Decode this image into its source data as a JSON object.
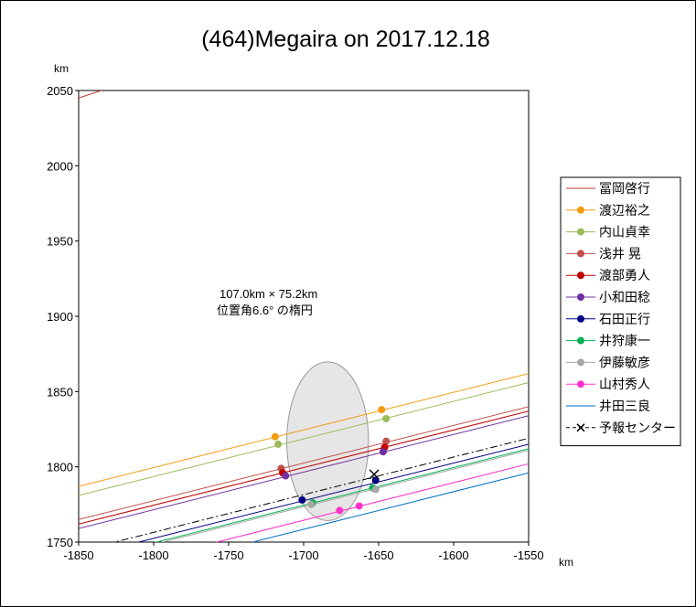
{
  "chart_data": {
    "type": "line",
    "title": "(464)Megaira on 2017.12.18",
    "xlabel": "km",
    "ylabel": "km",
    "xlim": [
      -1850,
      -1550
    ],
    "ylim": [
      1750,
      2050
    ],
    "xticks": [
      "-1850",
      "-1800",
      "-1750",
      "-1700",
      "-1650",
      "-1600",
      "-1550"
    ],
    "yticks": [
      "2050",
      "2000",
      "1950",
      "1900",
      "1850",
      "1800",
      "1750"
    ],
    "grid": false,
    "legend_position": "right",
    "annotation": [
      "107.0km × 75.2km",
      "位置角6.6° の楕円"
    ],
    "ellipse": {
      "cx": -1684,
      "cy": 1817,
      "major_km": 107.0,
      "minor_km": 75.2,
      "fill": "#e6e6e6"
    },
    "series": [
      {
        "name": "冨岡啓行",
        "color": "#c0392b",
        "line": [
          [
            -1850,
            2045
          ],
          [
            -1550,
            2145
          ]
        ],
        "points": []
      },
      {
        "name": "渡辺裕之",
        "color": "#f39c12",
        "line": [
          [
            -1850,
            1787
          ],
          [
            -1550,
            1862
          ]
        ],
        "points": [
          [
            -1719,
            1820
          ],
          [
            -1648,
            1838
          ]
        ]
      },
      {
        "name": "内山貞幸",
        "color": "#9bbb59",
        "line": [
          [
            -1850,
            1781
          ],
          [
            -1550,
            1856
          ]
        ],
        "points": [
          [
            -1717,
            1815
          ],
          [
            -1645,
            1832
          ]
        ]
      },
      {
        "name": "浅井 晃",
        "color": "#c0504d",
        "line": [
          [
            -1850,
            1765
          ],
          [
            -1550,
            1840
          ]
        ],
        "points": [
          [
            -1715,
            1799
          ],
          [
            -1645,
            1817
          ]
        ]
      },
      {
        "name": "渡部勇人",
        "color": "#c00000",
        "line": [
          [
            -1850,
            1762
          ],
          [
            -1550,
            1837
          ]
        ],
        "points": [
          [
            -1714,
            1796
          ],
          [
            -1646,
            1813
          ]
        ]
      },
      {
        "name": "小和田稔",
        "color": "#7030a0",
        "line": [
          [
            -1850,
            1759
          ],
          [
            -1550,
            1834
          ]
        ],
        "points": [
          [
            -1712,
            1794
          ],
          [
            -1647,
            1810
          ]
        ]
      },
      {
        "name": "石田正行",
        "color": "#000080",
        "line": [
          [
            -1850,
            1740
          ],
          [
            -1550,
            1815
          ]
        ],
        "points": [
          [
            -1701,
            1778
          ],
          [
            -1652,
            1791
          ]
        ]
      },
      {
        "name": "井狩康一",
        "color": "#00b050",
        "line": [
          [
            -1850,
            1737
          ],
          [
            -1550,
            1812
          ]
        ],
        "points": [
          [
            -1694,
            1776
          ],
          [
            -1654,
            1786
          ]
        ]
      },
      {
        "name": "伊藤敏彦",
        "color": "#a6a6a6",
        "line": [
          [
            -1850,
            1736
          ],
          [
            -1550,
            1811
          ]
        ],
        "points": [
          [
            -1695,
            1775
          ],
          [
            -1652,
            1785
          ]
        ]
      },
      {
        "name": "山村秀人",
        "color": "#ff33cc",
        "line": [
          [
            -1850,
            1727
          ],
          [
            -1550,
            1802
          ]
        ],
        "points": [
          [
            -1676,
            1771
          ],
          [
            -1663,
            1774
          ]
        ]
      },
      {
        "name": "井田三良",
        "color": "#0070c0",
        "line": [
          [
            -1850,
            1721
          ],
          [
            -1550,
            1796
          ]
        ],
        "points": []
      },
      {
        "name": "予報センター",
        "color": "#000000",
        "dashed": true,
        "line": [
          [
            -1850,
            1744
          ],
          [
            -1550,
            1819
          ]
        ],
        "points": [],
        "marker": [
          -1653,
          1795
        ]
      }
    ]
  }
}
